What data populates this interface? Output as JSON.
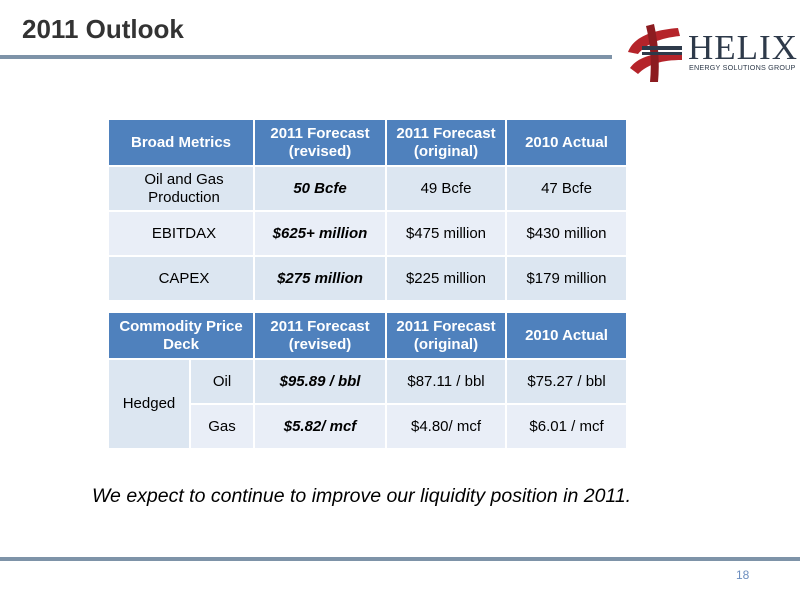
{
  "slide": {
    "title": "2011 Outlook",
    "page_number": "18",
    "statement": "We expect to continue to improve our liquidity position in 2011."
  },
  "logo": {
    "name": "HELIX",
    "tagline": "ENERGY SOLUTIONS GROUP",
    "colors": {
      "red": "#b5242a",
      "dark": "#2e3a4a"
    }
  },
  "colors": {
    "header_fill": "#4f81bd",
    "row_fill": "#dce6f1",
    "rule": "#7e93a8"
  },
  "metrics_table": {
    "headers": [
      "Broad Metrics",
      "2011 Forecast (revised)",
      "2011 Forecast (original)",
      "2010 Actual"
    ],
    "rows": [
      {
        "label": "Oil and Gas Production",
        "revised": "50 Bcfe",
        "original": "49 Bcfe",
        "actual": "47 Bcfe"
      },
      {
        "label": "EBITDAX",
        "revised": "$625+ million",
        "original": "$475 million",
        "actual": "$430 million"
      },
      {
        "label": "CAPEX",
        "revised": "$275 million",
        "original": "$225 million",
        "actual": "$179 million"
      }
    ]
  },
  "deck_table": {
    "headers": [
      "Commodity Price Deck",
      "2011 Forecast (revised)",
      "2011 Forecast (original)",
      "2010 Actual"
    ],
    "group_label": "Hedged",
    "rows": [
      {
        "label": "Oil",
        "revised": "$95.89 / bbl",
        "original": "$87.11 / bbl",
        "actual": "$75.27 / bbl"
      },
      {
        "label": "Gas",
        "revised": "$5.82/ mcf",
        "original": "$4.80/ mcf",
        "actual": "$6.01 / mcf"
      }
    ]
  }
}
